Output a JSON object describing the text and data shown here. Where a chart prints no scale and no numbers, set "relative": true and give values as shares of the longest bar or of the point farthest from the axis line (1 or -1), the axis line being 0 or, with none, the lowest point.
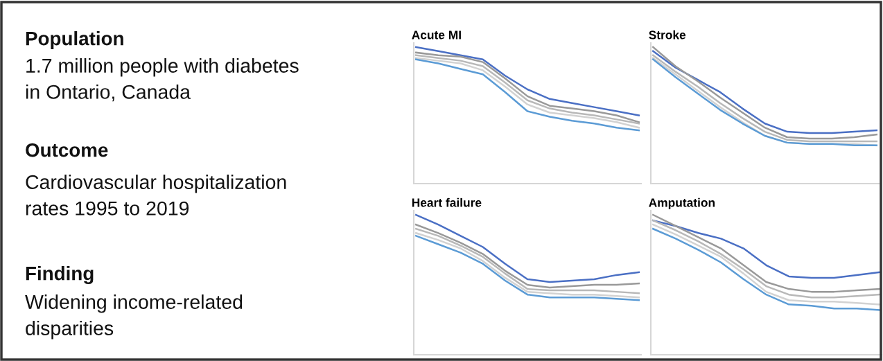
{
  "chart_data": [
    {
      "type": "other",
      "annotations": [
        "Population",
        "1.7 million people with diabetes\nin Ontario, Canada",
        "Outcome",
        "Cardiovascular hospitalization\nrates 1995 to 2019",
        "Finding",
        "Widening income-related\ndisparities"
      ]
    },
    {
      "type": "line",
      "title": "Acute MI",
      "relative": true,
      "categories": [
        null,
        null,
        null,
        null,
        null,
        null,
        null,
        null,
        null,
        null,
        null
      ],
      "series": [
        {
          "color": "#4a6fc4",
          "values": [
            1,
            0.97,
            0.94,
            0.91,
            0.79,
            0.69,
            0.62,
            0.59,
            0.56,
            0.53,
            0.5
          ]
        },
        {
          "color": "#999999",
          "values": [
            0.96,
            0.94,
            0.93,
            0.89,
            0.77,
            0.64,
            0.57,
            0.55,
            0.53,
            0.5,
            0.45
          ]
        },
        {
          "color": "#b8b8b8",
          "values": [
            0.94,
            0.92,
            0.9,
            0.86,
            0.74,
            0.61,
            0.55,
            0.52,
            0.5,
            0.47,
            0.44
          ]
        },
        {
          "color": "#d2d2d2",
          "values": [
            0.92,
            0.9,
            0.88,
            0.83,
            0.71,
            0.58,
            0.52,
            0.5,
            0.48,
            0.45,
            0.41
          ]
        },
        {
          "color": "#5b9bd5",
          "values": [
            0.91,
            0.88,
            0.84,
            0.8,
            0.67,
            0.53,
            0.49,
            0.46,
            0.44,
            0.41,
            0.39
          ]
        }
      ]
    },
    {
      "type": "line",
      "title": "Stroke",
      "relative": true,
      "categories": [
        null,
        null,
        null,
        null,
        null,
        null,
        null,
        null,
        null,
        null,
        null
      ],
      "series": [
        {
          "color": "#4a6fc4",
          "values": [
            0.97,
            0.85,
            0.76,
            0.67,
            0.55,
            0.44,
            0.38,
            0.37,
            0.37,
            0.38,
            0.39
          ]
        },
        {
          "color": "#999999",
          "values": [
            1,
            0.86,
            0.75,
            0.63,
            0.52,
            0.41,
            0.34,
            0.33,
            0.33,
            0.34,
            0.36
          ]
        },
        {
          "color": "#b8b8b8",
          "values": [
            0.94,
            0.82,
            0.71,
            0.59,
            0.48,
            0.38,
            0.32,
            0.31,
            0.31,
            0.31,
            0.31
          ]
        },
        {
          "color": "#d2d2d2",
          "values": [
            0.92,
            0.8,
            0.68,
            0.56,
            0.45,
            0.35,
            0.3,
            0.29,
            0.29,
            0.29,
            0.28
          ]
        },
        {
          "color": "#5b9bd5",
          "values": [
            0.91,
            0.78,
            0.66,
            0.54,
            0.44,
            0.35,
            0.3,
            0.29,
            0.29,
            0.28,
            0.28
          ]
        }
      ]
    },
    {
      "type": "line",
      "title": "Heart failure",
      "relative": true,
      "categories": [
        null,
        null,
        null,
        null,
        null,
        null,
        null,
        null,
        null,
        null,
        null
      ],
      "series": [
        {
          "color": "#4a6fc4",
          "values": [
            1,
            0.93,
            0.85,
            0.77,
            0.65,
            0.54,
            0.52,
            0.53,
            0.54,
            0.57,
            0.59
          ]
        },
        {
          "color": "#999999",
          "values": [
            0.93,
            0.87,
            0.8,
            0.72,
            0.6,
            0.5,
            0.48,
            0.49,
            0.5,
            0.5,
            0.51
          ]
        },
        {
          "color": "#b8b8b8",
          "values": [
            0.9,
            0.85,
            0.78,
            0.7,
            0.58,
            0.47,
            0.46,
            0.46,
            0.46,
            0.45,
            0.44
          ]
        },
        {
          "color": "#d2d2d2",
          "values": [
            0.87,
            0.82,
            0.76,
            0.67,
            0.55,
            0.45,
            0.44,
            0.43,
            0.43,
            0.42,
            0.41
          ]
        },
        {
          "color": "#5b9bd5",
          "values": [
            0.85,
            0.79,
            0.73,
            0.65,
            0.53,
            0.43,
            0.41,
            0.41,
            0.41,
            0.4,
            0.39
          ]
        }
      ]
    },
    {
      "type": "line",
      "title": "Amputation",
      "relative": true,
      "categories": [
        null,
        null,
        null,
        null,
        null,
        null,
        null,
        null,
        null,
        null,
        null
      ],
      "series": [
        {
          "color": "#4a6fc4",
          "values": [
            0.96,
            0.92,
            0.87,
            0.83,
            0.76,
            0.64,
            0.56,
            0.55,
            0.55,
            0.57,
            0.59
          ]
        },
        {
          "color": "#999999",
          "values": [
            1,
            0.92,
            0.84,
            0.76,
            0.64,
            0.52,
            0.47,
            0.45,
            0.45,
            0.46,
            0.47
          ]
        },
        {
          "color": "#b8b8b8",
          "values": [
            0.96,
            0.89,
            0.81,
            0.72,
            0.61,
            0.49,
            0.43,
            0.41,
            0.41,
            0.42,
            0.43
          ]
        },
        {
          "color": "#d2d2d2",
          "values": [
            0.93,
            0.86,
            0.78,
            0.7,
            0.58,
            0.45,
            0.39,
            0.38,
            0.38,
            0.37,
            0.36
          ]
        },
        {
          "color": "#5b9bd5",
          "values": [
            0.9,
            0.83,
            0.75,
            0.66,
            0.54,
            0.43,
            0.36,
            0.35,
            0.33,
            0.33,
            0.32
          ]
        }
      ]
    }
  ]
}
